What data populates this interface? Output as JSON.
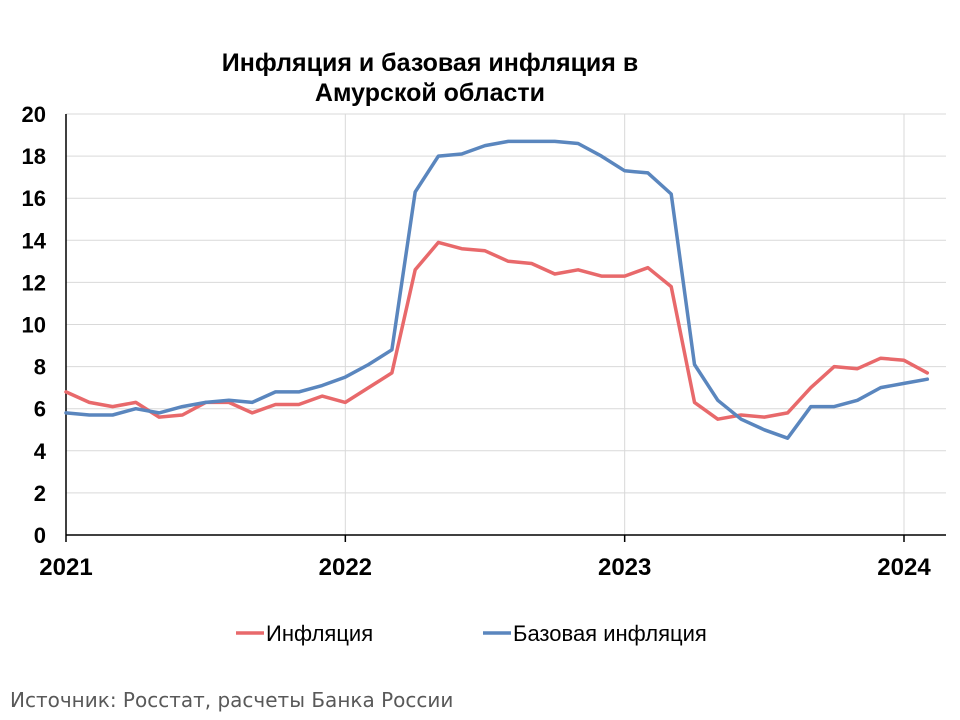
{
  "chart_data": {
    "type": "line",
    "title_lines": [
      "Инфляция и базовая инфляция в",
      "Амурской области"
    ],
    "ylim": [
      0,
      20
    ],
    "y_ticks": [
      0,
      2,
      4,
      6,
      8,
      10,
      12,
      14,
      16,
      18,
      20
    ],
    "x_ticks": [
      "2021",
      "2022",
      "2023",
      "2024"
    ],
    "x_start": "2021-01",
    "grid": true,
    "legend_position": "bottom",
    "series": [
      {
        "name": "Инфляция",
        "color": "#E8696B",
        "values": [
          6.8,
          6.3,
          6.1,
          6.3,
          5.6,
          5.7,
          6.3,
          6.3,
          5.8,
          6.2,
          6.2,
          6.6,
          6.3,
          7.0,
          7.7,
          12.6,
          13.9,
          13.6,
          13.5,
          13.0,
          12.9,
          12.4,
          12.6,
          12.3,
          12.3,
          12.7,
          11.8,
          6.3,
          5.5,
          5.7,
          5.6,
          5.8,
          7.0,
          8.0,
          7.9,
          8.4,
          8.3,
          7.7
        ]
      },
      {
        "name": "Базовая инфляция",
        "color": "#5A86BE",
        "values": [
          5.8,
          5.7,
          5.7,
          6.0,
          5.8,
          6.1,
          6.3,
          6.4,
          6.3,
          6.8,
          6.8,
          7.1,
          7.5,
          8.1,
          8.8,
          16.3,
          18.0,
          18.1,
          18.5,
          18.7,
          18.7,
          18.7,
          18.6,
          18.0,
          17.3,
          17.2,
          16.2,
          8.1,
          6.4,
          5.5,
          5.0,
          4.6,
          6.1,
          6.1,
          6.4,
          7.0,
          7.2,
          7.4
        ]
      }
    ],
    "source": "Источник: Росстат, расчеты Банка России"
  }
}
